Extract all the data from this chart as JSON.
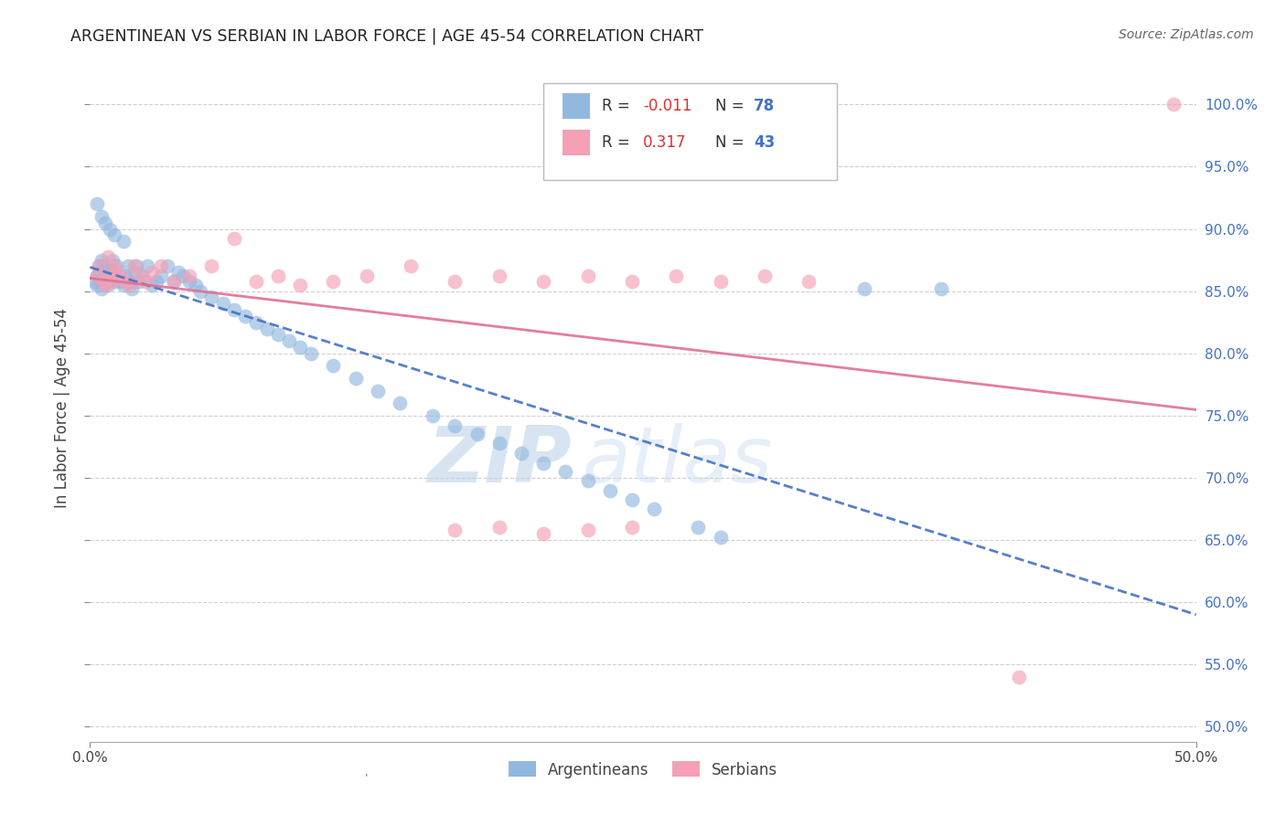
{
  "title": "ARGENTINEAN VS SERBIAN IN LABOR FORCE | AGE 45-54 CORRELATION CHART",
  "source": "Source: ZipAtlas.com",
  "ylabel": "In Labor Force | Age 45-54",
  "xlim": [
    0.0,
    0.5
  ],
  "ylim": [
    0.488,
    1.025
  ],
  "yticks": [
    0.5,
    0.55,
    0.6,
    0.65,
    0.7,
    0.75,
    0.8,
    0.85,
    0.9,
    0.95,
    1.0
  ],
  "ytick_labels_right": [
    "50.0%",
    "55.0%",
    "60.0%",
    "65.0%",
    "70.0%",
    "75.0%",
    "80.0%",
    "85.0%",
    "90.0%",
    "95.0%",
    "100.0%"
  ],
  "R_arg": -0.011,
  "N_arg": 78,
  "R_ser": 0.317,
  "N_ser": 43,
  "arg_color": "#92b8e0",
  "ser_color": "#f4a0b5",
  "arg_trend_color": "#4472c4",
  "ser_trend_color": "#e07090",
  "watermark_zip": "#c5d8ee",
  "watermark_atlas": "#c5d8ee",
  "background_color": "#ffffff",
  "grid_color": "#d0d0d0",
  "legend_r_color": "#e03030",
  "legend_n_color": "#4472c4",
  "arg_x": [
    0.002,
    0.003,
    0.003,
    0.004,
    0.004,
    0.005,
    0.005,
    0.005,
    0.006,
    0.006,
    0.007,
    0.007,
    0.008,
    0.008,
    0.009,
    0.009,
    0.01,
    0.01,
    0.011,
    0.011,
    0.012,
    0.013,
    0.014,
    0.015,
    0.016,
    0.017,
    0.018,
    0.019,
    0.02,
    0.021,
    0.022,
    0.024,
    0.026,
    0.028,
    0.03,
    0.032,
    0.035,
    0.038,
    0.04,
    0.042,
    0.045,
    0.048,
    0.05,
    0.055,
    0.06,
    0.065,
    0.07,
    0.075,
    0.08,
    0.085,
    0.09,
    0.095,
    0.1,
    0.11,
    0.12,
    0.13,
    0.14,
    0.155,
    0.165,
    0.175,
    0.185,
    0.195,
    0.205,
    0.215,
    0.225,
    0.235,
    0.245,
    0.255,
    0.275,
    0.285,
    0.003,
    0.005,
    0.007,
    0.009,
    0.011,
    0.015,
    0.35,
    0.385
  ],
  "arg_y": [
    0.858,
    0.862,
    0.855,
    0.87,
    0.865,
    0.858,
    0.852,
    0.875,
    0.862,
    0.87,
    0.858,
    0.865,
    0.862,
    0.855,
    0.87,
    0.858,
    0.862,
    0.875,
    0.858,
    0.865,
    0.87,
    0.862,
    0.858,
    0.855,
    0.862,
    0.87,
    0.858,
    0.852,
    0.865,
    0.87,
    0.858,
    0.862,
    0.87,
    0.855,
    0.858,
    0.862,
    0.87,
    0.858,
    0.865,
    0.862,
    0.858,
    0.855,
    0.85,
    0.845,
    0.84,
    0.835,
    0.83,
    0.825,
    0.82,
    0.815,
    0.81,
    0.805,
    0.8,
    0.79,
    0.78,
    0.77,
    0.76,
    0.75,
    0.742,
    0.735,
    0.728,
    0.72,
    0.712,
    0.705,
    0.698,
    0.69,
    0.682,
    0.675,
    0.66,
    0.652,
    0.92,
    0.91,
    0.905,
    0.9,
    0.895,
    0.89,
    0.852,
    0.852
  ],
  "ser_x": [
    0.003,
    0.004,
    0.006,
    0.007,
    0.008,
    0.009,
    0.01,
    0.011,
    0.012,
    0.014,
    0.016,
    0.018,
    0.02,
    0.022,
    0.025,
    0.028,
    0.032,
    0.038,
    0.045,
    0.055,
    0.065,
    0.075,
    0.085,
    0.095,
    0.11,
    0.125,
    0.145,
    0.165,
    0.185,
    0.205,
    0.225,
    0.245,
    0.265,
    0.285,
    0.305,
    0.325,
    0.165,
    0.185,
    0.205,
    0.225,
    0.245,
    0.42,
    0.49
  ],
  "ser_y": [
    0.862,
    0.87,
    0.858,
    0.855,
    0.878,
    0.862,
    0.858,
    0.87,
    0.865,
    0.862,
    0.858,
    0.855,
    0.87,
    0.862,
    0.858,
    0.865,
    0.87,
    0.858,
    0.862,
    0.87,
    0.892,
    0.858,
    0.862,
    0.855,
    0.858,
    0.862,
    0.87,
    0.858,
    0.862,
    0.858,
    0.862,
    0.858,
    0.862,
    0.858,
    0.862,
    0.858,
    0.658,
    0.66,
    0.655,
    0.658,
    0.66,
    0.54,
    1.0
  ]
}
